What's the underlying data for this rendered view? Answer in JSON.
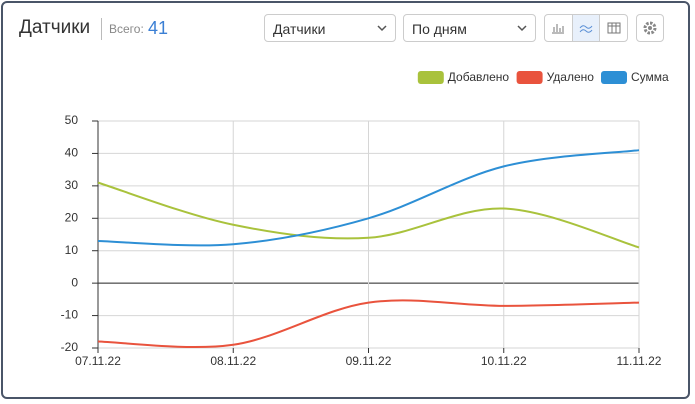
{
  "header": {
    "title": "Датчики",
    "total_label": "Всего:",
    "total_value": 41
  },
  "controls": {
    "select_1": "Датчики",
    "select_2": "По дням"
  },
  "chart_data": {
    "type": "line",
    "categories": [
      "07.11.22",
      "08.11.22",
      "09.11.22",
      "10.11.22",
      "11.11.22"
    ],
    "series": [
      {
        "name": "Добавлено",
        "color": "#a9c23c",
        "values": [
          31,
          18,
          14,
          23,
          11
        ]
      },
      {
        "name": "Удалено",
        "color": "#e9533d",
        "values": [
          -18,
          -19,
          -6,
          -7,
          -6
        ]
      },
      {
        "name": "Сумма",
        "color": "#2d8fd5",
        "values": [
          13,
          12,
          20,
          36,
          41
        ]
      }
    ],
    "ylim": [
      -20,
      50
    ],
    "yticks": [
      -20,
      -10,
      0,
      10,
      20,
      30,
      40,
      50
    ],
    "grid": true,
    "legend": "top-right"
  }
}
